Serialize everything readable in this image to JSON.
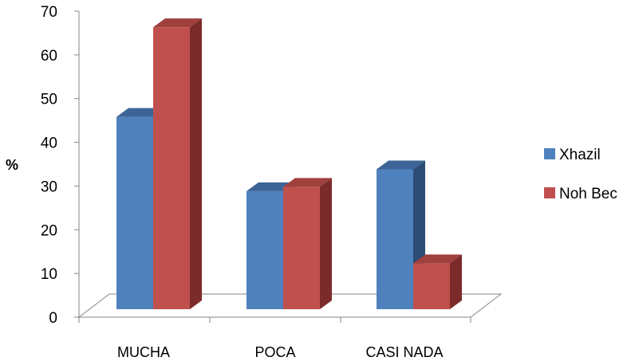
{
  "chart_data": {
    "type": "bar",
    "style": "3d-clustered-column",
    "categories": [
      "MUCHA",
      "POCA",
      "CASI NADA"
    ],
    "series": [
      {
        "name": "Xhazil",
        "values": [
          44,
          27,
          32
        ],
        "color": "#4F81BD",
        "top_color": "#3C6496",
        "side_color": "#2C4D75"
      },
      {
        "name": "Noh Bec",
        "values": [
          64.5,
          28,
          10.5
        ],
        "color": "#C0504D",
        "top_color": "#A0403D",
        "side_color": "#7B2C2A"
      }
    ],
    "title": "",
    "xlabel": "",
    "ylabel": "%",
    "ylim": [
      0,
      70
    ],
    "yticks": [
      0,
      10,
      20,
      30,
      40,
      50,
      60,
      70
    ],
    "grid": false,
    "legend_position": "right"
  }
}
